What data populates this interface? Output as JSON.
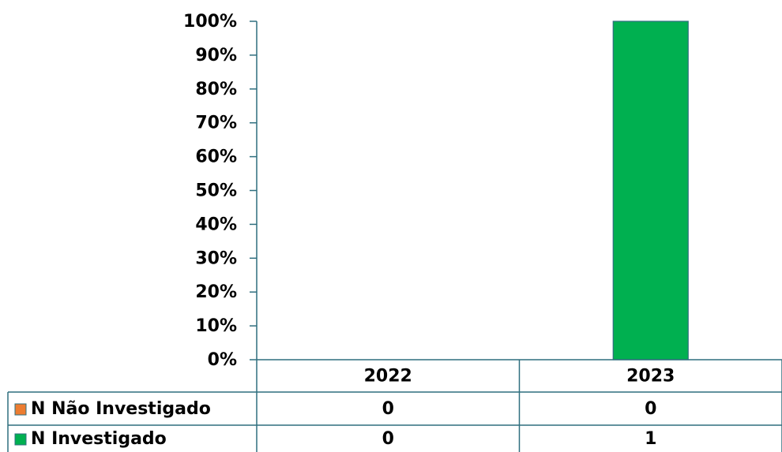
{
  "chart_data": {
    "type": "bar",
    "stacking": "percent",
    "categories": [
      "2022",
      "2023"
    ],
    "series": [
      {
        "name": "N Não Investigado",
        "color": "#ed7d31",
        "values": [
          0,
          0
        ]
      },
      {
        "name": "N Investigado",
        "color": "#00b050",
        "values": [
          0,
          1
        ]
      }
    ],
    "ylim": [
      0,
      100
    ],
    "yticks": [
      {
        "value": 0,
        "label": "0%"
      },
      {
        "value": 10,
        "label": "10%"
      },
      {
        "value": 20,
        "label": "20%"
      },
      {
        "value": 30,
        "label": "30%"
      },
      {
        "value": 40,
        "label": "40%"
      },
      {
        "value": 50,
        "label": "50%"
      },
      {
        "value": 60,
        "label": "60%"
      },
      {
        "value": 70,
        "label": "70%"
      },
      {
        "value": 80,
        "label": "80%"
      },
      {
        "value": 90,
        "label": "90%"
      },
      {
        "value": 100,
        "label": "100%"
      }
    ],
    "data_table": true
  }
}
